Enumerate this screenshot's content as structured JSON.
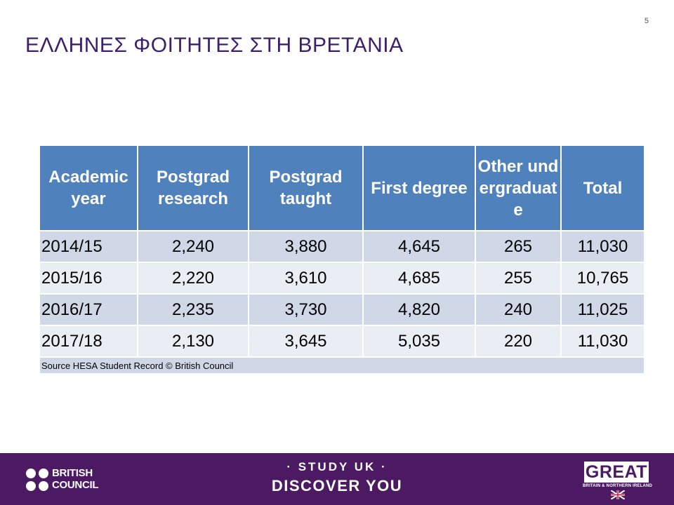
{
  "slide": {
    "number": "5",
    "title": "ΕΛΛΗΝΕΣ ΦΟΙΤΗΤΕΣ ΣΤΗ ΒΡΕΤΑΝΙΑ"
  },
  "table": {
    "headers": [
      "Academic year",
      "Postgrad research",
      "Postgrad taught",
      "First degree",
      "Other undergraduate",
      "Total"
    ],
    "rows": [
      [
        "2014/15",
        "2,240",
        "3,880",
        "4,645",
        "265",
        "11,030"
      ],
      [
        "2015/16",
        "2,220",
        "3,610",
        "4,685",
        "255",
        "10,765"
      ],
      [
        "2016/17",
        "2,235",
        "3,730",
        "4,820",
        "240",
        "11,025"
      ],
      [
        "2017/18",
        "2,130",
        "3,645",
        "5,035",
        "220",
        "11,030"
      ]
    ],
    "source": "Source HESA Student Record © British Council"
  },
  "footer": {
    "british_council_line1": "BRITISH",
    "british_council_line2": "COUNCIL",
    "study_uk": "· STUDY UK ·",
    "discover_you": "DISCOVER YOU",
    "great": "GREAT",
    "great_subtitle": "BRITAIN & NORTHERN IRELAND",
    "icons": [
      "british-council-dots",
      "union-jack-flag"
    ]
  },
  "colors": {
    "title": "#3d1f6e",
    "header_bg": "#4f81bd",
    "row_dark": "#d0d8e8",
    "row_light": "#e9edf4",
    "footer_bg": "#4b1a63"
  }
}
